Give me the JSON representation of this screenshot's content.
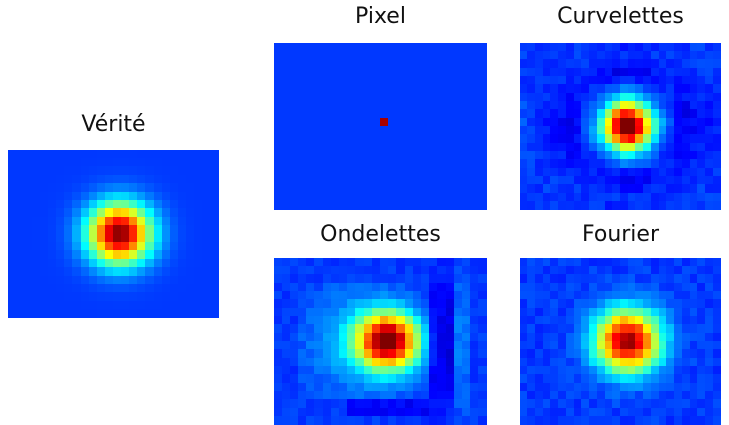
{
  "panels": [
    {
      "id": "verite",
      "title": "Vérité",
      "pattern": "gaussian-peak"
    },
    {
      "id": "pixel",
      "title": "Pixel",
      "pattern": "single-hot-pixel"
    },
    {
      "id": "curvelettes",
      "title": "Curvelettes",
      "pattern": "peak-with-cross-ringing"
    },
    {
      "id": "ondelettes",
      "title": "Ondelettes",
      "pattern": "peak-with-blocky-artifacts"
    },
    {
      "id": "fourier",
      "title": "Fourier",
      "pattern": "gaussian-peak-with-noise"
    }
  ],
  "colormap": "jet",
  "colors": {
    "low": "#0000ff",
    "background": "#1a4ef0",
    "peak": "#800000"
  }
}
